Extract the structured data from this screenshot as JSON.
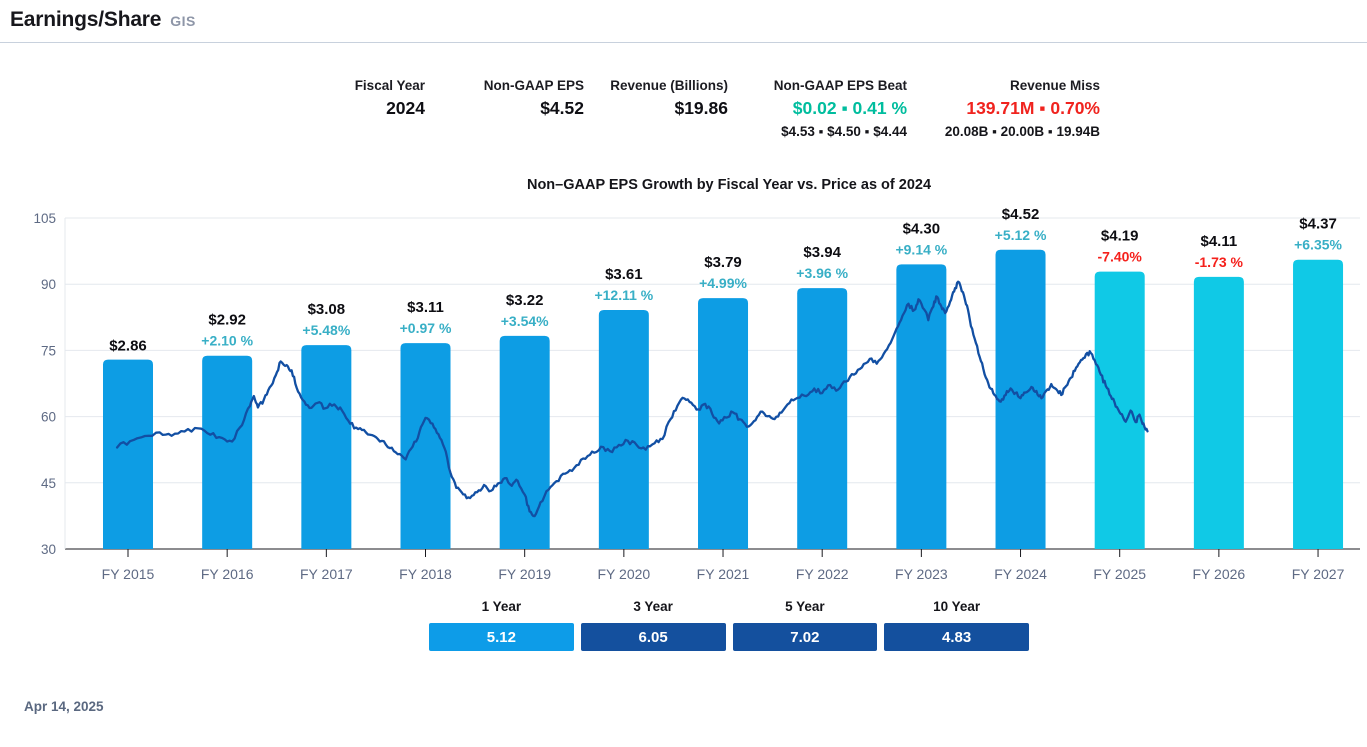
{
  "header": {
    "title": "Earnings/Share",
    "ticker": "GIS"
  },
  "stats": {
    "fiscal_year": {
      "label": "Fiscal Year",
      "value": "2024"
    },
    "eps": {
      "label": "Non-GAAP EPS",
      "value": "$4.52"
    },
    "revenue": {
      "label": "Revenue (Billions)",
      "value": "$19.86"
    },
    "eps_beat": {
      "label": "Non-GAAP EPS Beat",
      "value": "$0.02 ▪ 0.41 %",
      "estimates": "$4.53 ▪ $4.50 ▪ $4.44"
    },
    "revenue_miss": {
      "label": "Revenue Miss",
      "value": "139.71M ▪ 0.70%",
      "estimates": "20.08B ▪ 20.00B ▪ 19.94B"
    }
  },
  "chart_data": {
    "type": "bar+line",
    "title": "Non–GAAP EPS Growth by Fiscal Year vs. Price as of 2024",
    "y_axis": {
      "ticks": [
        105,
        90,
        75,
        60,
        45,
        30
      ],
      "range": [
        30,
        105
      ],
      "grid": true
    },
    "eps_hidden_axis": {
      "min": 0,
      "max": 5.0
    },
    "bars": [
      {
        "category": "FY 2015",
        "eps": 2.86,
        "eps_label": "$2.86",
        "growth_label": null,
        "forecast": false
      },
      {
        "category": "FY 2016",
        "eps": 2.92,
        "eps_label": "$2.92",
        "growth_label": "+2.10 %",
        "forecast": false
      },
      {
        "category": "FY 2017",
        "eps": 3.08,
        "eps_label": "$3.08",
        "growth_label": "+5.48%",
        "forecast": false
      },
      {
        "category": "FY 2018",
        "eps": 3.11,
        "eps_label": "$3.11",
        "growth_label": "+0.97 %",
        "forecast": false
      },
      {
        "category": "FY 2019",
        "eps": 3.22,
        "eps_label": "$3.22",
        "growth_label": "+3.54%",
        "forecast": false
      },
      {
        "category": "FY 2020",
        "eps": 3.61,
        "eps_label": "$3.61",
        "growth_label": "+12.11 %",
        "forecast": false
      },
      {
        "category": "FY 2021",
        "eps": 3.79,
        "eps_label": "$3.79",
        "growth_label": "+4.99%",
        "forecast": false
      },
      {
        "category": "FY 2022",
        "eps": 3.94,
        "eps_label": "$3.94",
        "growth_label": "+3.96 %",
        "forecast": false
      },
      {
        "category": "FY 2023",
        "eps": 4.3,
        "eps_label": "$4.30",
        "growth_label": "+9.14 %",
        "forecast": false
      },
      {
        "category": "FY 2024",
        "eps": 4.52,
        "eps_label": "$4.52",
        "growth_label": "+5.12 %",
        "forecast": false
      },
      {
        "category": "FY 2025",
        "eps": 4.19,
        "eps_label": "$4.19",
        "growth_label": "-7.40%",
        "forecast": true
      },
      {
        "category": "FY 2026",
        "eps": 4.11,
        "eps_label": "$4.11",
        "growth_label": "-1.73 %",
        "forecast": true
      },
      {
        "category": "FY 2027",
        "eps": 4.37,
        "eps_label": "$4.37",
        "growth_label": "+6.35%",
        "forecast": true
      }
    ],
    "price_series": {
      "name": "Price",
      "points": [
        [
          2014.89,
          53
        ],
        [
          2015.02,
          54.5
        ],
        [
          2015.17,
          55.5
        ],
        [
          2015.32,
          56.3
        ],
        [
          2015.44,
          55.6
        ],
        [
          2015.57,
          56.8
        ],
        [
          2015.71,
          57.2
        ],
        [
          2015.83,
          56
        ],
        [
          2015.95,
          55.2
        ],
        [
          2016.05,
          54.5
        ],
        [
          2016.15,
          58
        ],
        [
          2016.23,
          62.5
        ],
        [
          2016.27,
          64.8
        ],
        [
          2016.31,
          62
        ],
        [
          2016.37,
          63.8
        ],
        [
          2016.43,
          66.5
        ],
        [
          2016.49,
          69.5
        ],
        [
          2016.54,
          72.5
        ],
        [
          2016.6,
          71.8
        ],
        [
          2016.65,
          70.5
        ],
        [
          2016.7,
          66.5
        ],
        [
          2016.76,
          64
        ],
        [
          2016.83,
          62
        ],
        [
          2016.91,
          63
        ],
        [
          2016.99,
          62
        ],
        [
          2017.08,
          62.8
        ],
        [
          2017.16,
          61.5
        ],
        [
          2017.24,
          58.5
        ],
        [
          2017.32,
          57.2
        ],
        [
          2017.4,
          56.5
        ],
        [
          2017.48,
          55.8
        ],
        [
          2017.56,
          54.5
        ],
        [
          2017.64,
          53
        ],
        [
          2017.72,
          51.5
        ],
        [
          2017.8,
          50.3
        ],
        [
          2017.87,
          53
        ],
        [
          2017.94,
          56.5
        ],
        [
          2018,
          59.8
        ],
        [
          2018.07,
          58.5
        ],
        [
          2018.13,
          56
        ],
        [
          2018.19,
          53
        ],
        [
          2018.25,
          47.5
        ],
        [
          2018.31,
          44
        ],
        [
          2018.38,
          42.5
        ],
        [
          2018.45,
          41.5
        ],
        [
          2018.52,
          43
        ],
        [
          2018.59,
          44.5
        ],
        [
          2018.66,
          43.2
        ],
        [
          2018.73,
          44.8
        ],
        [
          2018.8,
          46
        ],
        [
          2018.87,
          44.5
        ],
        [
          2018.93,
          45.5
        ],
        [
          2019,
          42.5
        ],
        [
          2019.05,
          38.5
        ],
        [
          2019.1,
          37.5
        ],
        [
          2019.16,
          40.5
        ],
        [
          2019.24,
          43.5
        ],
        [
          2019.32,
          45.5
        ],
        [
          2019.41,
          47
        ],
        [
          2019.5,
          48.5
        ],
        [
          2019.59,
          50.5
        ],
        [
          2019.68,
          52
        ],
        [
          2019.77,
          53
        ],
        [
          2019.86,
          52
        ],
        [
          2019.95,
          53.5
        ],
        [
          2020.04,
          54.5
        ],
        [
          2020.13,
          53.5
        ],
        [
          2020.22,
          52.5
        ],
        [
          2020.31,
          54
        ],
        [
          2020.39,
          55
        ],
        [
          2020.47,
          59.5
        ],
        [
          2020.54,
          62.5
        ],
        [
          2020.61,
          64.3
        ],
        [
          2020.68,
          63
        ],
        [
          2020.75,
          61.5
        ],
        [
          2020.82,
          62.8
        ],
        [
          2020.89,
          60.8
        ],
        [
          2020.96,
          58.5
        ],
        [
          2021.03,
          59.8
        ],
        [
          2021.1,
          61
        ],
        [
          2021.17,
          59.3
        ],
        [
          2021.24,
          57.8
        ],
        [
          2021.31,
          59
        ],
        [
          2021.38,
          61.2
        ],
        [
          2021.45,
          60
        ],
        [
          2021.52,
          59.5
        ],
        [
          2021.59,
          61
        ],
        [
          2021.67,
          63.2
        ],
        [
          2021.75,
          64.3
        ],
        [
          2021.84,
          64.8
        ],
        [
          2021.92,
          66.3
        ],
        [
          2022,
          65.3
        ],
        [
          2022.08,
          67.3
        ],
        [
          2022.16,
          66
        ],
        [
          2022.24,
          68
        ],
        [
          2022.32,
          69.5
        ],
        [
          2022.4,
          71.3
        ],
        [
          2022.48,
          73
        ],
        [
          2022.55,
          72
        ],
        [
          2022.62,
          74.3
        ],
        [
          2022.69,
          76.8
        ],
        [
          2022.75,
          80
        ],
        [
          2022.81,
          83
        ],
        [
          2022.87,
          85.5
        ],
        [
          2022.93,
          84
        ],
        [
          2022.97,
          86.5
        ],
        [
          2023.03,
          84.3
        ],
        [
          2023.07,
          82
        ],
        [
          2023.12,
          85
        ],
        [
          2023.16,
          87.3
        ],
        [
          2023.2,
          85
        ],
        [
          2023.24,
          83.5
        ],
        [
          2023.29,
          86
        ],
        [
          2023.33,
          88.3
        ],
        [
          2023.37,
          90.5
        ],
        [
          2023.42,
          88.3
        ],
        [
          2023.46,
          85
        ],
        [
          2023.5,
          80.5
        ],
        [
          2023.55,
          76.5
        ],
        [
          2023.6,
          72.5
        ],
        [
          2023.65,
          69
        ],
        [
          2023.7,
          66.5
        ],
        [
          2023.75,
          64.8
        ],
        [
          2023.8,
          63.3
        ],
        [
          2023.85,
          65
        ],
        [
          2023.9,
          66.3
        ],
        [
          2023.95,
          65.3
        ],
        [
          2024,
          64
        ],
        [
          2024.05,
          65.5
        ],
        [
          2024.11,
          66.8
        ],
        [
          2024.16,
          65.8
        ],
        [
          2024.21,
          64.3
        ],
        [
          2024.26,
          65.8
        ],
        [
          2024.31,
          67.3
        ],
        [
          2024.36,
          66.3
        ],
        [
          2024.41,
          65
        ],
        [
          2024.46,
          67
        ],
        [
          2024.51,
          69
        ],
        [
          2024.56,
          71
        ],
        [
          2024.61,
          72.8
        ],
        [
          2024.66,
          74
        ],
        [
          2024.71,
          74.5
        ],
        [
          2024.76,
          72
        ],
        [
          2024.81,
          69.5
        ],
        [
          2024.86,
          67
        ],
        [
          2024.91,
          64.8
        ],
        [
          2024.96,
          62.3
        ],
        [
          2025.01,
          60.5
        ],
        [
          2025.06,
          59
        ],
        [
          2025.11,
          61.3
        ],
        [
          2025.16,
          58.8
        ],
        [
          2025.2,
          60.3
        ],
        [
          2025.24,
          58.3
        ],
        [
          2025.28,
          56.8
        ]
      ]
    },
    "legend_position": "none"
  },
  "period_growth": {
    "items": [
      {
        "label": "1 Year",
        "value": "5.12"
      },
      {
        "label": "3 Year",
        "value": "6.05"
      },
      {
        "label": "5 Year",
        "value": "7.02"
      },
      {
        "label": "10 Year",
        "value": "4.83"
      }
    ]
  },
  "footer": {
    "date": "Apr 14, 2025"
  },
  "colors": {
    "bar_actual": "#0D9DE4",
    "bar_forecast": "#10C9E6",
    "price_line": "#124FA3",
    "growth_positive": "#38AFC6",
    "growth_negative": "#F5201B",
    "beat_green": "#00BD9E",
    "miss_red": "#F0231E",
    "period_box_first": "#0D9CE8",
    "period_box_rest": "#14509E",
    "grid": "#E4E8EE",
    "axis_text": "#5E6A84",
    "axis_line": "#1A1A1F",
    "bar_value_text": "#0D0D12"
  }
}
